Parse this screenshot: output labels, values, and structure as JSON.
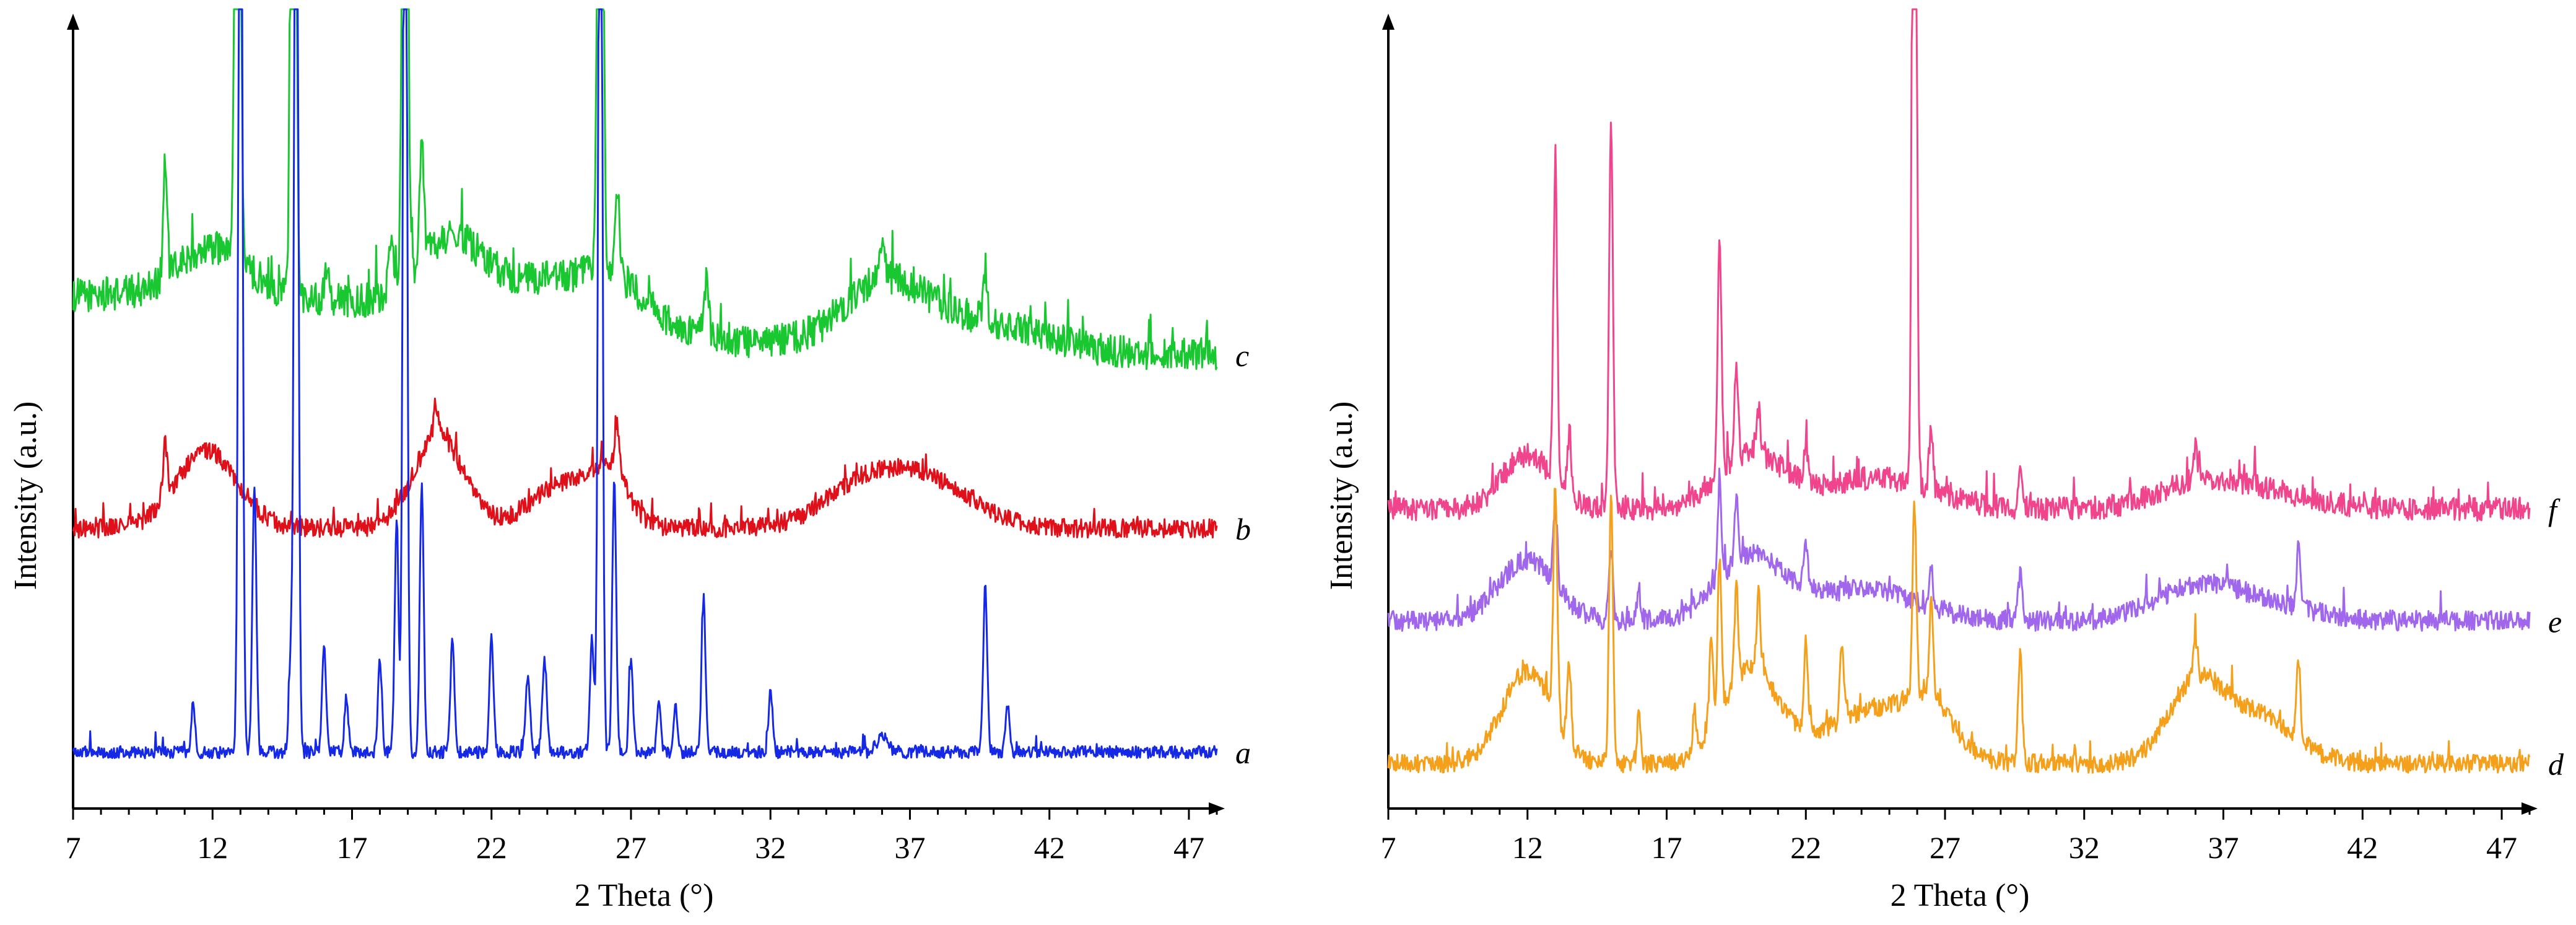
{
  "chart_data": [
    {
      "type": "line",
      "xlabel": "2 Theta (°)",
      "ylabel": "Intensity (a.u.)",
      "xlim": [
        7,
        48
      ],
      "x_ticks": [
        "7",
        "12",
        "17",
        "22",
        "27",
        "32",
        "37",
        "42",
        "47"
      ],
      "grid": false,
      "legend": "none",
      "series": [
        {
          "name": "c",
          "color": "#19c830",
          "baseline": 0.56,
          "noise": 0.022,
          "humps": [
            [
              10.5,
              12.0,
              0.08
            ],
            [
              12.0,
              1.2,
              0.06
            ],
            [
              20.5,
              1.2,
              0.09
            ],
            [
              24.0,
              1.8,
              0.05
            ],
            [
              26.5,
              1.2,
              0.05
            ],
            [
              36.0,
              1.4,
              0.07
            ],
            [
              39.0,
              2.5,
              0.04
            ]
          ],
          "peaks": [
            [
              10.3,
              0.15,
              0.07
            ],
            [
              12.9,
              1.5,
              0.08
            ],
            [
              14.9,
              1.5,
              0.08
            ],
            [
              16.1,
              0.05,
              0.08
            ],
            [
              18.4,
              0.06,
              0.08
            ],
            [
              18.9,
              1.5,
              0.08
            ],
            [
              19.5,
              0.14,
              0.08
            ],
            [
              25.9,
              1.5,
              0.08
            ],
            [
              26.5,
              0.12,
              0.08
            ],
            [
              29.7,
              0.07,
              0.08
            ],
            [
              36.0,
              0.06,
              0.08
            ],
            [
              39.7,
              0.07,
              0.08
            ]
          ]
        },
        {
          "name": "b",
          "color": "#e0101a",
          "baseline": 0.335,
          "noise": 0.012,
          "humps": [
            [
              11.8,
              1.1,
              0.1
            ],
            [
              20.1,
              0.9,
              0.12
            ],
            [
              24.8,
              1.3,
              0.06
            ],
            [
              26.3,
              0.6,
              0.05
            ],
            [
              35.5,
              1.5,
              0.06
            ],
            [
              38.0,
              1.5,
              0.05
            ]
          ],
          "peaks": [
            [
              10.3,
              0.07,
              0.08
            ],
            [
              20.0,
              0.04,
              0.08
            ],
            [
              26.5,
              0.06,
              0.08
            ]
          ]
        },
        {
          "name": "a",
          "color": "#1428e6",
          "baseline": 0.045,
          "noise": 0.008,
          "humps": [],
          "peaks": [
            [
              11.3,
              0.06,
              0.07
            ],
            [
              13.0,
              1.5,
              0.07
            ],
            [
              13.5,
              0.35,
              0.07
            ],
            [
              14.8,
              0.12,
              0.07
            ],
            [
              15.0,
              1.5,
              0.07
            ],
            [
              16.0,
              0.14,
              0.07
            ],
            [
              16.8,
              0.07,
              0.07
            ],
            [
              18.0,
              0.12,
              0.07
            ],
            [
              18.6,
              0.3,
              0.07
            ],
            [
              18.9,
              1.5,
              0.07
            ],
            [
              19.5,
              0.35,
              0.07
            ],
            [
              20.6,
              0.15,
              0.07
            ],
            [
              22.0,
              0.15,
              0.07
            ],
            [
              23.3,
              0.1,
              0.08
            ],
            [
              23.9,
              0.12,
              0.08
            ],
            [
              25.6,
              0.15,
              0.07
            ],
            [
              25.9,
              1.5,
              0.07
            ],
            [
              26.4,
              0.35,
              0.07
            ],
            [
              27.0,
              0.12,
              0.07
            ],
            [
              28.0,
              0.06,
              0.07
            ],
            [
              28.6,
              0.06,
              0.07
            ],
            [
              29.6,
              0.2,
              0.07
            ],
            [
              32.0,
              0.08,
              0.07
            ],
            [
              36.0,
              0.02,
              0.2
            ],
            [
              39.7,
              0.22,
              0.07
            ],
            [
              40.5,
              0.06,
              0.07
            ]
          ]
        }
      ]
    },
    {
      "type": "line",
      "xlabel": "2 Theta (°)",
      "ylabel": "Intensity (a.u.)",
      "xlim": [
        7,
        48
      ],
      "x_ticks": [
        "7",
        "12",
        "17",
        "22",
        "27",
        "32",
        "37",
        "42",
        "47"
      ],
      "grid": false,
      "legend": "none",
      "series": [
        {
          "name": "f",
          "color": "#f0448c",
          "baseline": 0.36,
          "noise": 0.015,
          "humps": [
            [
              12.0,
              0.9,
              0.07
            ],
            [
              20.0,
              1.2,
              0.07
            ],
            [
              24.5,
              2.0,
              0.04
            ],
            [
              36.0,
              1.5,
              0.03
            ],
            [
              38.5,
              1.8,
              0.02
            ]
          ],
          "peaks": [
            [
              13.0,
              0.4,
              0.07
            ],
            [
              13.5,
              0.08,
              0.07
            ],
            [
              15.0,
              0.5,
              0.07
            ],
            [
              18.9,
              0.3,
              0.07
            ],
            [
              19.5,
              0.12,
              0.07
            ],
            [
              20.3,
              0.06,
              0.07
            ],
            [
              22.0,
              0.04,
              0.07
            ],
            [
              25.9,
              1.5,
              0.07
            ],
            [
              26.5,
              0.08,
              0.07
            ],
            [
              29.7,
              0.06,
              0.07
            ],
            [
              36.0,
              0.04,
              0.07
            ]
          ]
        },
        {
          "name": "e",
          "color": "#a066ec",
          "baseline": 0.215,
          "noise": 0.013,
          "humps": [
            [
              12.0,
              1.0,
              0.08
            ],
            [
              20.0,
              1.2,
              0.08
            ],
            [
              24.0,
              2.0,
              0.04
            ],
            [
              36.0,
              1.5,
              0.04
            ],
            [
              38.5,
              1.8,
              0.02
            ]
          ],
          "peaks": [
            [
              13.0,
              0.1,
              0.07
            ],
            [
              15.0,
              0.1,
              0.07
            ],
            [
              16.0,
              0.04,
              0.07
            ],
            [
              18.9,
              0.12,
              0.07
            ],
            [
              19.5,
              0.08,
              0.07
            ],
            [
              22.0,
              0.06,
              0.07
            ],
            [
              26.5,
              0.05,
              0.07
            ],
            [
              29.7,
              0.06,
              0.07
            ],
            [
              39.7,
              0.08,
              0.07
            ]
          ]
        },
        {
          "name": "d",
          "color": "#f5a01a",
          "baseline": 0.03,
          "noise": 0.012,
          "humps": [
            [
              12.0,
              0.9,
              0.12
            ],
            [
              20.0,
              1.0,
              0.12
            ],
            [
              24.5,
              1.8,
              0.07
            ],
            [
              26.5,
              0.8,
              0.05
            ],
            [
              36.0,
              1.0,
              0.1
            ],
            [
              38.3,
              1.3,
              0.06
            ]
          ],
          "peaks": [
            [
              13.0,
              0.3,
              0.07
            ],
            [
              13.5,
              0.1,
              0.07
            ],
            [
              15.0,
              0.35,
              0.07
            ],
            [
              16.0,
              0.06,
              0.07
            ],
            [
              18.0,
              0.05,
              0.07
            ],
            [
              18.6,
              0.12,
              0.07
            ],
            [
              18.9,
              0.2,
              0.07
            ],
            [
              19.5,
              0.12,
              0.07
            ],
            [
              20.3,
              0.1,
              0.07
            ],
            [
              22.0,
              0.12,
              0.07
            ],
            [
              23.3,
              0.1,
              0.07
            ],
            [
              25.9,
              0.25,
              0.07
            ],
            [
              26.5,
              0.12,
              0.07
            ],
            [
              29.7,
              0.14,
              0.07
            ],
            [
              36.0,
              0.05,
              0.07
            ],
            [
              39.7,
              0.1,
              0.07
            ]
          ]
        }
      ]
    }
  ]
}
